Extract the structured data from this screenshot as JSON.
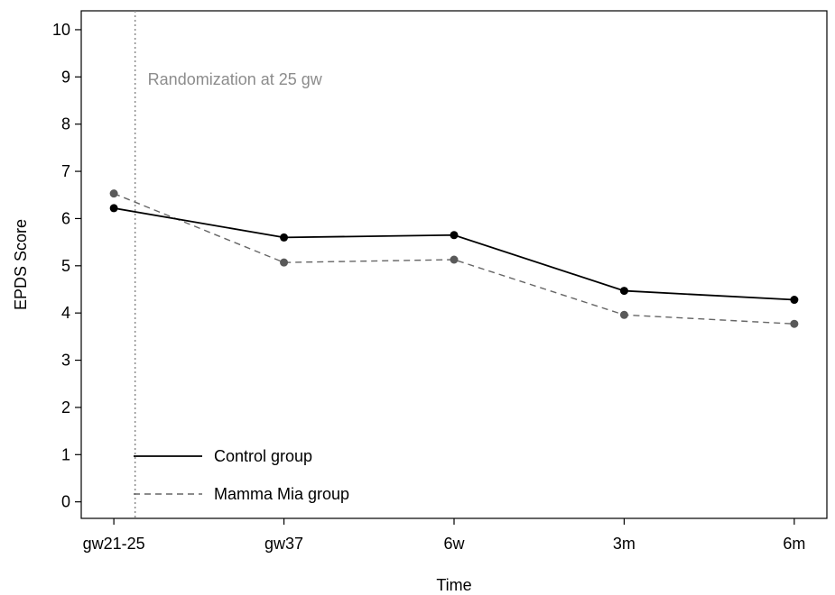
{
  "chart_data": {
    "type": "line",
    "categories": [
      "gw21-25",
      "gw37",
      "6w",
      "3m",
      "6m"
    ],
    "x_positions": [
      0,
      6,
      12,
      18,
      24
    ],
    "series": [
      {
        "name": "Control group",
        "values": [
          6.22,
          5.6,
          5.65,
          4.47,
          4.28
        ],
        "color": "#000000",
        "marker_color": "#000000",
        "dash": "solid"
      },
      {
        "name": "Mamma Mia group",
        "values": [
          6.53,
          5.07,
          5.13,
          3.96,
          3.77
        ],
        "color": "#666666",
        "marker_color": "#595959",
        "dash": "dashed"
      }
    ],
    "title": "",
    "xlabel": "Time",
    "ylabel": "EPDS Score",
    "ylim": [
      -0.35,
      10.4
    ],
    "yticks": [
      0,
      1,
      2,
      3,
      4,
      5,
      6,
      7,
      8,
      9,
      10
    ],
    "xlim": [
      -1.15,
      25.15
    ],
    "grid": false,
    "legend_position": "bottom-left",
    "reference_line": {
      "x": 0.75,
      "label": "Randomization at 25 gw",
      "color": "#8c8c8c"
    }
  }
}
